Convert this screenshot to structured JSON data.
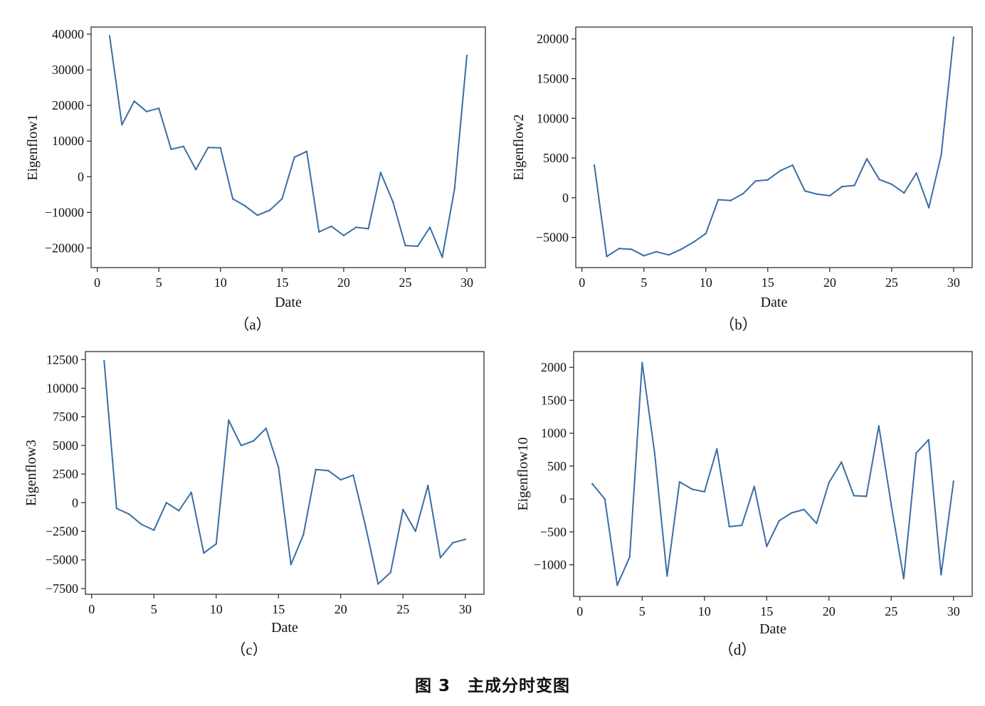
{
  "figure_caption": "图 3　主成分时变图",
  "colors": {
    "line": "#3a6ea5",
    "axis": "#222222"
  },
  "chart_data": [
    {
      "type": "line",
      "caption": "（a）",
      "xlabel": "Date",
      "ylabel": "Eigenflow1",
      "xlim": [
        -0.5,
        31.5
      ],
      "ylim": [
        -25500,
        42000
      ],
      "xticks": [
        0,
        5,
        10,
        15,
        20,
        25,
        30
      ],
      "yticks": [
        -20000,
        -10000,
        0,
        10000,
        20000,
        30000,
        40000
      ],
      "grid": false,
      "x": [
        1,
        2,
        3,
        4,
        5,
        6,
        7,
        8,
        9,
        10,
        11,
        12,
        13,
        14,
        15,
        16,
        17,
        18,
        19,
        20,
        21,
        22,
        23,
        24,
        25,
        26,
        27,
        28,
        29,
        30
      ],
      "values": [
        39500,
        14600,
        21200,
        18300,
        19200,
        7700,
        8500,
        2000,
        8200,
        8100,
        -6200,
        -8200,
        -10800,
        -9400,
        -6200,
        5500,
        7100,
        -15500,
        -13900,
        -16500,
        -14200,
        -14600,
        1200,
        -7100,
        -19300,
        -19500,
        -14200,
        -22600,
        -3400,
        34000
      ]
    },
    {
      "type": "line",
      "caption": "（b）",
      "xlabel": "Date",
      "ylabel": "Eigenflow2",
      "xlim": [
        -0.5,
        31.5
      ],
      "ylim": [
        -8800,
        21500
      ],
      "xticks": [
        0,
        5,
        10,
        15,
        20,
        25,
        30
      ],
      "yticks": [
        -5000,
        0,
        5000,
        10000,
        15000,
        20000
      ],
      "grid": false,
      "x": [
        1,
        2,
        3,
        4,
        5,
        6,
        7,
        8,
        9,
        10,
        11,
        12,
        13,
        14,
        15,
        16,
        17,
        18,
        19,
        20,
        21,
        22,
        23,
        24,
        25,
        26,
        27,
        28,
        29,
        30
      ],
      "values": [
        4100,
        -7400,
        -6400,
        -6500,
        -7300,
        -6800,
        -7200,
        -6500,
        -5600,
        -4500,
        -250,
        -350,
        500,
        2100,
        2250,
        3400,
        4100,
        850,
        450,
        250,
        1400,
        1550,
        4900,
        2300,
        1700,
        600,
        3100,
        -1250,
        5400,
        20200
      ]
    },
    {
      "type": "line",
      "caption": "（c）",
      "xlabel": "Date",
      "ylabel": "Eigenflow3",
      "xlim": [
        -0.5,
        31.5
      ],
      "ylim": [
        -8000,
        13200
      ],
      "xticks": [
        0,
        5,
        10,
        15,
        20,
        25,
        30
      ],
      "yticks": [
        -7500,
        -5000,
        -2500,
        0,
        2500,
        5000,
        7500,
        10000,
        12500
      ],
      "grid": false,
      "x": [
        1,
        2,
        3,
        4,
        5,
        6,
        7,
        8,
        9,
        10,
        11,
        12,
        13,
        14,
        15,
        16,
        17,
        18,
        19,
        20,
        21,
        22,
        23,
        24,
        25,
        26,
        27,
        28,
        29,
        30
      ],
      "values": [
        12400,
        -500,
        -1000,
        -1900,
        -2400,
        0,
        -700,
        900,
        -4400,
        -3600,
        7200,
        5000,
        5400,
        6500,
        3100,
        -5400,
        -2800,
        2900,
        2800,
        2000,
        2400,
        -2100,
        -7100,
        -6100,
        -600,
        -2500,
        1500,
        -4800,
        -3500,
        -3200
      ]
    },
    {
      "type": "line",
      "caption": "（d）",
      "xlabel": "Date",
      "ylabel": "Eigenflow10",
      "xlim": [
        -0.5,
        31.5
      ],
      "ylim": [
        -1480,
        2240
      ],
      "xticks": [
        0,
        5,
        10,
        15,
        20,
        25,
        30
      ],
      "yticks": [
        -1000,
        -500,
        0,
        500,
        1000,
        1500,
        2000
      ],
      "grid": false,
      "x": [
        1,
        2,
        3,
        4,
        5,
        6,
        7,
        8,
        9,
        10,
        11,
        12,
        13,
        14,
        15,
        16,
        17,
        18,
        19,
        20,
        21,
        22,
        23,
        24,
        25,
        26,
        27,
        28,
        29,
        30
      ],
      "values": [
        230,
        0,
        -1310,
        -880,
        2070,
        700,
        -1170,
        260,
        150,
        110,
        760,
        -420,
        -400,
        190,
        -720,
        -330,
        -210,
        -160,
        -370,
        250,
        560,
        50,
        40,
        1110,
        -90,
        -1210,
        700,
        900,
        -1150,
        270
      ]
    }
  ]
}
